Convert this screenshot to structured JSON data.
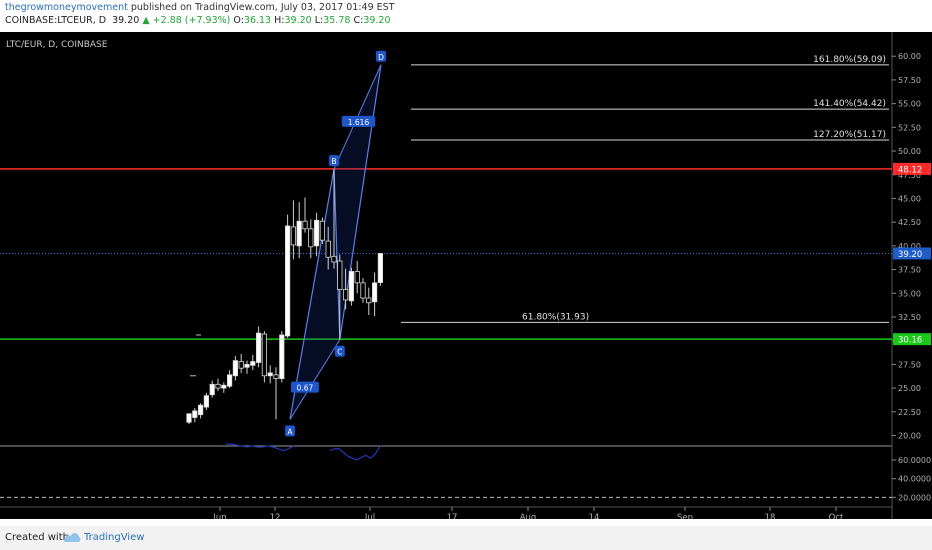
{
  "header": {
    "author": "thegrowmoneymovement",
    "published_text": "published on TradingView.com, July 03, 2017 01:49 EST",
    "symbol": "COINBASE:LTCEUR, D",
    "last": "39.20",
    "change": "+2.88 (+7.93%)",
    "o_label": "O:",
    "o_value": "36.13",
    "h_label": "H:",
    "h_value": "39.20",
    "l_label": "L:",
    "l_value": "35.78",
    "c_label": "C:",
    "c_value": "39.20"
  },
  "footer": {
    "created_with": "Created with",
    "brand": "TradingView"
  },
  "chart_data": {
    "type": "candlestick",
    "title": "LTC/EUR, D, COINBASE",
    "price_axis": {
      "range": [
        19,
        61.5
      ],
      "ticks": [
        "20.00",
        "22.50",
        "25.00",
        "27.50",
        "30.00",
        "32.50",
        "35.00",
        "37.50",
        "40.00",
        "42.50",
        "45.00",
        "47.50",
        "50.00",
        "52.50",
        "55.00",
        "57.50",
        "60.00"
      ]
    },
    "price_tags": [
      {
        "label": "48.12",
        "value": 48.12,
        "color": "#ff2a2a"
      },
      {
        "label": "39.20",
        "value": 39.2,
        "color": "#1e5cc8"
      },
      {
        "label": "30.16",
        "value": 30.16,
        "color": "#19c819"
      }
    ],
    "horizontal_lines": [
      {
        "value": 48.12,
        "color": "#ff2a2a"
      },
      {
        "value": 30.16,
        "color": "#19c819"
      },
      {
        "value": 39.2,
        "color": "#3a6ee0",
        "dotted": true
      }
    ],
    "time_axis": {
      "labels": [
        "Jun",
        "12",
        "Jul",
        "17",
        "Aug",
        "14",
        "Sep",
        "18",
        "Oct"
      ]
    },
    "candles": [
      {
        "o": 21.4,
        "h": 22.3,
        "l": 21.2,
        "c": 22.3
      },
      {
        "o": 21.9,
        "h": 22.9,
        "l": 21.4,
        "c": 22.6
      },
      {
        "o": 22.2,
        "h": 23.4,
        "l": 21.8,
        "c": 23.2
      },
      {
        "o": 23.0,
        "h": 24.5,
        "l": 22.7,
        "c": 24.2
      },
      {
        "o": 24.3,
        "h": 25.8,
        "l": 24.0,
        "c": 25.4
      },
      {
        "o": 25.4,
        "h": 26.0,
        "l": 24.7,
        "c": 25.0
      },
      {
        "o": 25.0,
        "h": 25.6,
        "l": 24.5,
        "c": 25.3
      },
      {
        "o": 25.2,
        "h": 26.9,
        "l": 25.0,
        "c": 26.4
      },
      {
        "o": 26.3,
        "h": 28.4,
        "l": 25.8,
        "c": 27.9
      },
      {
        "o": 27.8,
        "h": 28.6,
        "l": 26.6,
        "c": 27.1
      },
      {
        "o": 27.2,
        "h": 27.9,
        "l": 26.5,
        "c": 27.5
      },
      {
        "o": 27.4,
        "h": 28.5,
        "l": 26.9,
        "c": 27.8
      },
      {
        "o": 27.7,
        "h": 31.5,
        "l": 27.2,
        "c": 30.8
      },
      {
        "o": 30.7,
        "h": 31.0,
        "l": 25.6,
        "c": 26.3
      },
      {
        "o": 26.3,
        "h": 27.4,
        "l": 25.5,
        "c": 26.6
      },
      {
        "o": 26.4,
        "h": 27.2,
        "l": 21.7,
        "c": 26.0
      },
      {
        "o": 26.0,
        "h": 31.0,
        "l": 25.6,
        "c": 30.6
      },
      {
        "o": 30.5,
        "h": 43.3,
        "l": 30.3,
        "c": 42.1
      },
      {
        "o": 42.0,
        "h": 44.8,
        "l": 38.6,
        "c": 40.1
      },
      {
        "o": 40.0,
        "h": 44.6,
        "l": 38.7,
        "c": 42.6
      },
      {
        "o": 42.6,
        "h": 45.1,
        "l": 41.4,
        "c": 41.8
      },
      {
        "o": 41.8,
        "h": 42.8,
        "l": 38.7,
        "c": 39.9
      },
      {
        "o": 40.0,
        "h": 43.5,
        "l": 38.9,
        "c": 42.7
      },
      {
        "o": 42.6,
        "h": 43.0,
        "l": 40.2,
        "c": 40.6
      },
      {
        "o": 40.5,
        "h": 42.0,
        "l": 37.5,
        "c": 38.8
      },
      {
        "o": 38.9,
        "h": 48.1,
        "l": 37.6,
        "c": 38.3
      },
      {
        "o": 38.4,
        "h": 39.1,
        "l": 30.1,
        "c": 35.4
      },
      {
        "o": 35.4,
        "h": 37.6,
        "l": 33.3,
        "c": 34.3
      },
      {
        "o": 34.2,
        "h": 37.7,
        "l": 33.7,
        "c": 37.3
      },
      {
        "o": 37.3,
        "h": 38.4,
        "l": 35.0,
        "c": 36.1
      },
      {
        "o": 36.1,
        "h": 36.6,
        "l": 34.0,
        "c": 34.5
      },
      {
        "o": 34.5,
        "h": 35.6,
        "l": 32.7,
        "c": 34.0
      },
      {
        "o": 34.1,
        "h": 37.2,
        "l": 32.6,
        "c": 36.1
      },
      {
        "o": 36.13,
        "h": 39.2,
        "l": 35.78,
        "c": 39.2
      }
    ],
    "harmonic_pattern": {
      "points": [
        {
          "label": "A",
          "value": 21.7
        },
        {
          "label": "B",
          "value": 48.1
        },
        {
          "label": "C",
          "value": 30.1
        },
        {
          "label": "D",
          "value": 59.1
        }
      ],
      "ratios": [
        "0.67",
        "1.616"
      ]
    },
    "fib_levels": [
      {
        "label": "161.80%(59.09)",
        "value": 59.09
      },
      {
        "label": "141.40%(54.42)",
        "value": 54.42
      },
      {
        "label": "127.20%(51.17)",
        "value": 51.17
      },
      {
        "label": "61.80%(31.93)",
        "value": 31.93
      }
    ],
    "indicator": {
      "range": [
        15,
        75
      ],
      "ticks": [
        "60.0000",
        "40.0000",
        "20.0000"
      ],
      "dashed_level": 20,
      "series_a": [
        77,
        77,
        76,
        75,
        74,
        75,
        74,
        74,
        75,
        74,
        72,
        70,
        72,
        75
      ],
      "series_b": [
        70,
        72,
        72,
        68,
        64,
        62,
        60,
        63,
        65,
        62,
        66,
        74
      ]
    }
  }
}
